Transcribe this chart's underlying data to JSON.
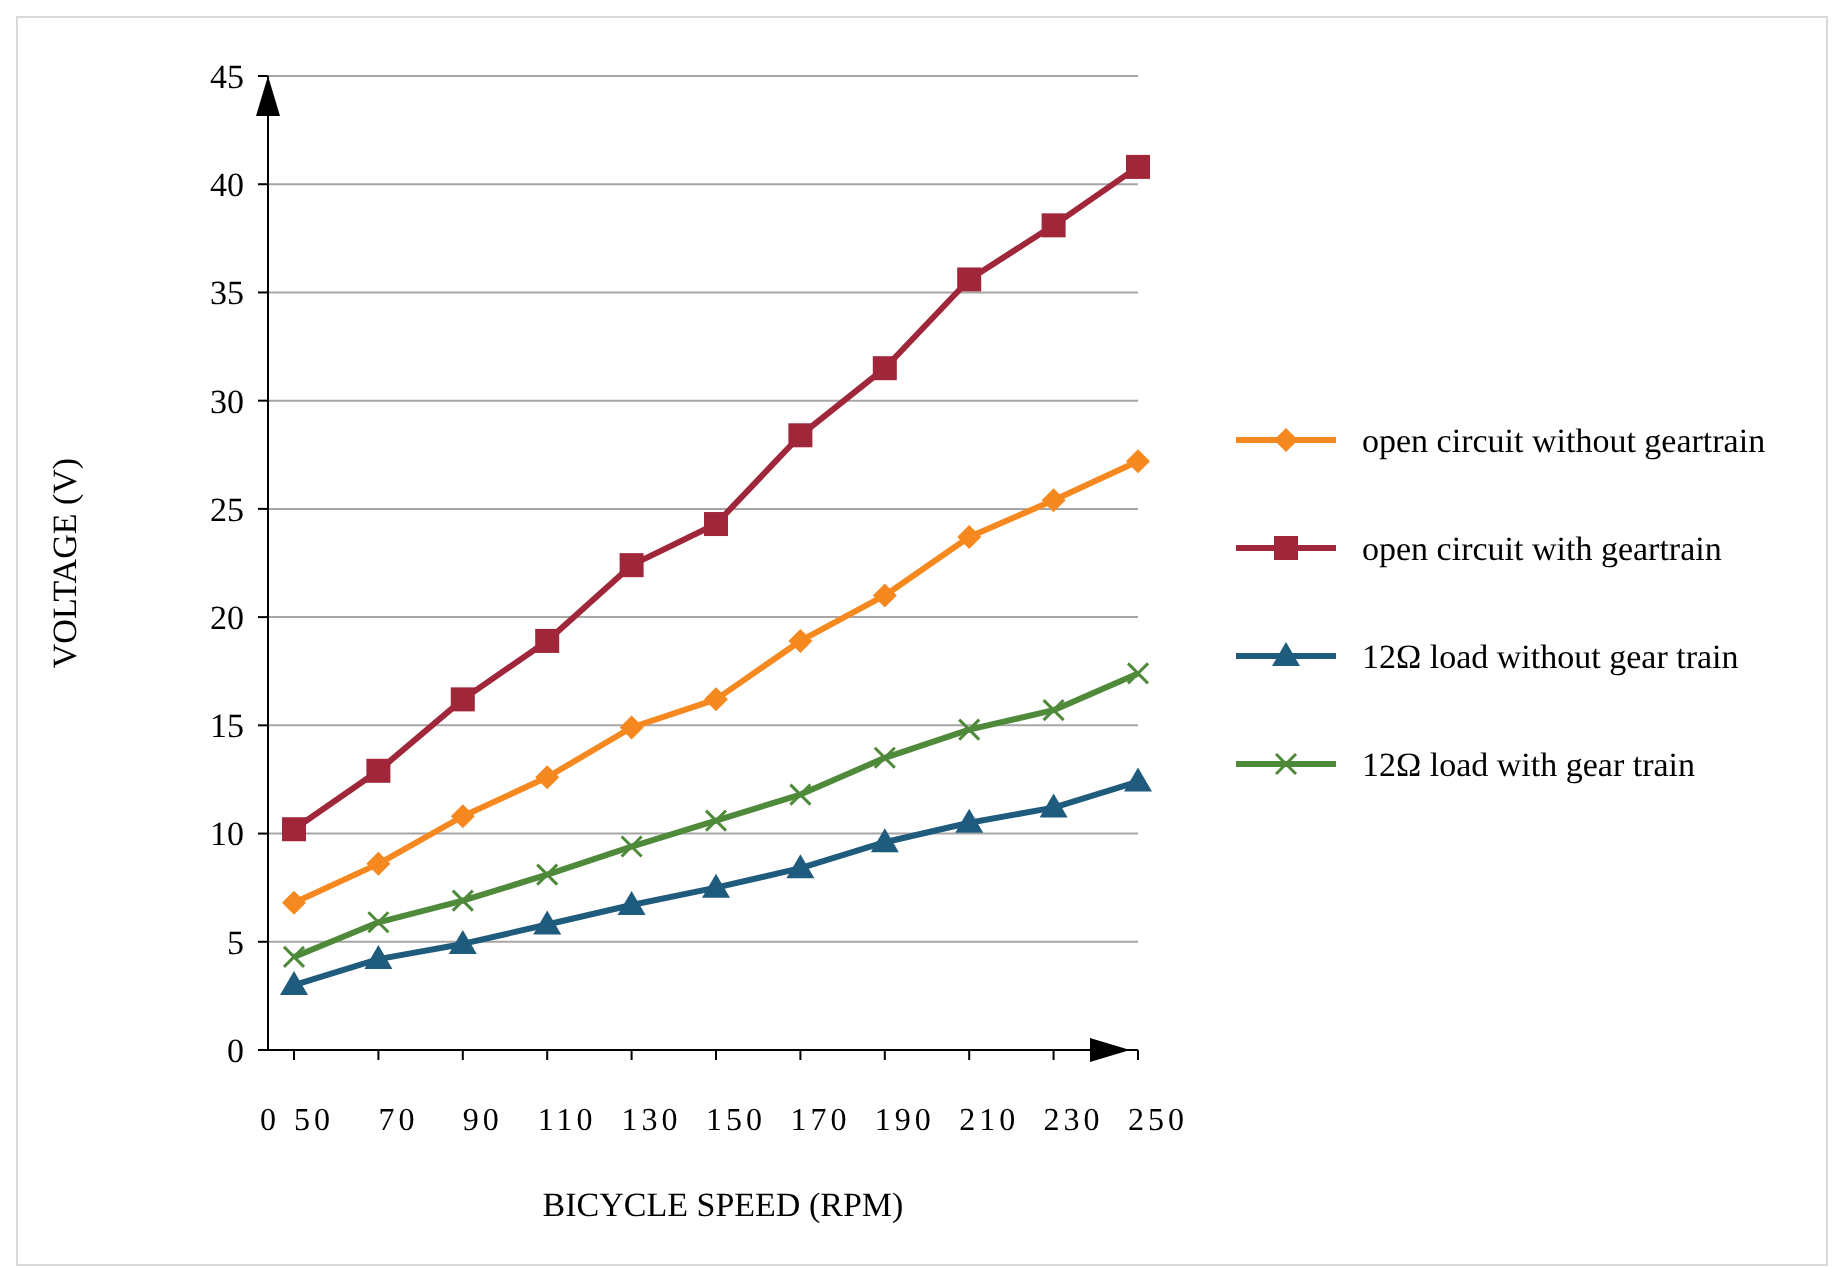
{
  "chart_data": {
    "type": "line",
    "xlabel": "BICYCLE SPEED (RPM)",
    "ylabel": "VOLTAGE (V)",
    "categories": [
      "50",
      "70",
      "90",
      "110",
      "130",
      "150",
      "170",
      "190",
      "210",
      "230",
      "250"
    ],
    "ylim": [
      0,
      45
    ],
    "yticks": [
      0,
      5,
      10,
      15,
      20,
      25,
      30,
      35,
      40,
      45
    ],
    "grid": "y",
    "legend": "right",
    "annotations": [
      "0"
    ],
    "series": [
      {
        "name": "open circuit without geartrain",
        "color": "#f5891f",
        "marker": "diamond",
        "values": [
          6.8,
          8.6,
          10.8,
          12.6,
          14.9,
          16.2,
          18.9,
          21.0,
          23.7,
          25.4,
          27.2
        ]
      },
      {
        "name": "open circuit with geartrain",
        "color": "#a0263a",
        "marker": "square",
        "values": [
          10.2,
          12.9,
          16.2,
          18.9,
          22.4,
          24.3,
          28.4,
          31.5,
          35.6,
          38.1,
          40.8
        ]
      },
      {
        "name": "12Ω load without gear train",
        "color": "#1f5b7d",
        "marker": "triangle",
        "values": [
          3.0,
          4.2,
          4.9,
          5.8,
          6.7,
          7.5,
          8.4,
          9.6,
          10.5,
          11.2,
          12.4
        ]
      },
      {
        "name": "12Ω load with gear train",
        "color": "#4f8a3a",
        "marker": "cross",
        "values": [
          4.3,
          5.9,
          6.9,
          8.1,
          9.4,
          10.6,
          11.8,
          13.5,
          14.8,
          15.7,
          17.4
        ]
      }
    ]
  }
}
